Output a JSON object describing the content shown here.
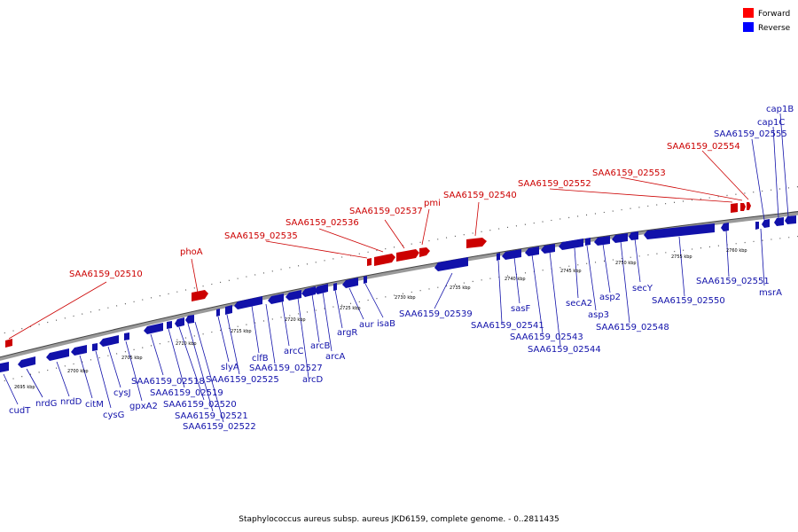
{
  "caption": "Staphylococcus aureus subsp. aureus JKD6159, complete genome. - 0..2811435",
  "legend": [
    {
      "label": "Forward",
      "color": "#ff0000"
    },
    {
      "label": "Reverse",
      "color": "#0000ff"
    }
  ],
  "ticks": [
    "2695 kbp",
    "2700 kbp",
    "2705 kbp",
    "2710 kbp",
    "2715 kbp",
    "2720 kbp",
    "2725 kbp",
    "2730 kbp",
    "2735 kbp",
    "2740 kbp",
    "2745 kbp",
    "2750 kbp",
    "2755 kbp",
    "2760 kbp"
  ],
  "forward_genes": [
    "SAA6159_02510",
    "phoA",
    "SAA6159_02535",
    "SAA6159_02536",
    "SAA6159_02537",
    "pmi",
    "SAA6159_02540",
    "SAA6159_02552",
    "SAA6159_02553",
    "SAA6159_02554"
  ],
  "reverse_genes": [
    "cudT",
    "nrdG",
    "nrdD",
    "citM",
    "cysG",
    "cysJ",
    "gpxA2",
    "SAA6159_02518",
    "SAA6159_02519",
    "SAA6159_02520",
    "SAA6159_02521",
    "SAA6159_02522",
    "slyA",
    "SAA6159_02525",
    "clfB",
    "SAA6159_02527",
    "arcC",
    "arcD",
    "arcB",
    "arcA",
    "argR",
    "aur",
    "isaB",
    "SAA6159_02539",
    "SAA6159_02541",
    "sasF",
    "SAA6159_02543",
    "SAA6159_02544",
    "secA2",
    "asp3",
    "asp2",
    "SAA6159_02548",
    "secY",
    "SAA6159_02550",
    "SAA6159_02551",
    "msrA",
    "SAA6159_02555",
    "cap1C",
    "cap1B"
  ]
}
